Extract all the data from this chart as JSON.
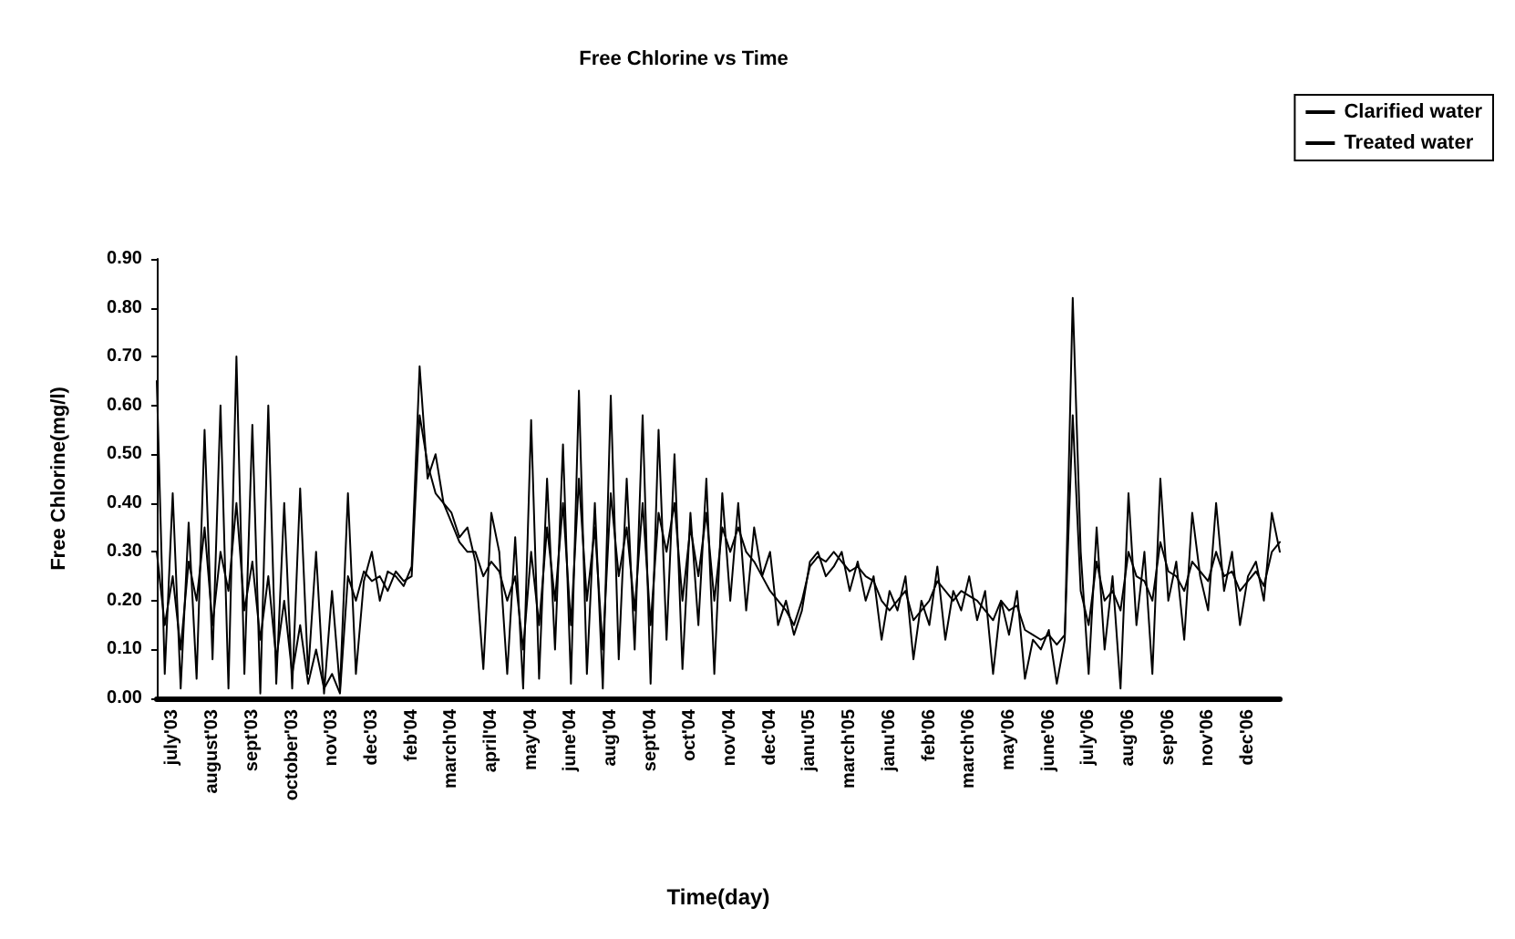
{
  "chart_data": {
    "type": "line",
    "title": "Free Chlorine vs Time",
    "xlabel": "Time(day)",
    "ylabel": "Free Chlorine(mg/l)",
    "categories": [
      null,
      null,
      "july'03",
      null,
      null,
      null,
      null,
      "august'03",
      null,
      null,
      null,
      null,
      "sept'03",
      null,
      null,
      null,
      null,
      "october'03",
      null,
      null,
      null,
      null,
      "nov'03",
      null,
      null,
      null,
      null,
      "dec'03",
      null,
      null,
      null,
      null,
      "feb'04",
      null,
      null,
      null,
      null,
      "march'04",
      null,
      null,
      null,
      null,
      "april'04",
      null,
      null,
      null,
      null,
      "may'04",
      null,
      null,
      null,
      null,
      "june'04",
      null,
      null,
      null,
      null,
      "aug'04",
      null,
      null,
      null,
      null,
      "sept'04",
      null,
      null,
      null,
      null,
      "oct'04",
      null,
      null,
      null,
      null,
      "nov'04",
      null,
      null,
      null,
      null,
      "dec'04",
      null,
      null,
      null,
      null,
      "janu'05",
      null,
      null,
      null,
      null,
      "march'05",
      null,
      null,
      null,
      null,
      "janu'06",
      null,
      null,
      null,
      null,
      "feb'06",
      null,
      null,
      null,
      null,
      "march'06",
      null,
      null,
      null,
      null,
      "may'06",
      null,
      null,
      null,
      null,
      "june'06",
      null,
      null,
      null,
      null,
      "july'06",
      null,
      null,
      null,
      null,
      "aug'06",
      null,
      null,
      null,
      null,
      "sep'06",
      null,
      null,
      null,
      null,
      "nov'06",
      null,
      null,
      null,
      null,
      "dec'06",
      null,
      null,
      null,
      null
    ],
    "series": [
      {
        "name": "Clarified water",
        "color": "#000000",
        "values": [
          0.65,
          0.05,
          0.42,
          0.02,
          0.36,
          0.04,
          0.55,
          0.08,
          0.6,
          0.02,
          0.7,
          0.05,
          0.56,
          0.01,
          0.6,
          0.03,
          0.4,
          0.02,
          0.43,
          0.05,
          0.3,
          0.01,
          0.22,
          0.02,
          0.42,
          0.05,
          0.24,
          0.3,
          0.2,
          0.26,
          0.25,
          0.23,
          0.27,
          0.68,
          0.45,
          0.5,
          0.4,
          0.38,
          0.33,
          0.35,
          0.28,
          0.06,
          0.38,
          0.3,
          0.05,
          0.33,
          0.02,
          0.57,
          0.04,
          0.45,
          0.1,
          0.52,
          0.03,
          0.63,
          0.05,
          0.4,
          0.02,
          0.62,
          0.08,
          0.45,
          0.1,
          0.58,
          0.03,
          0.55,
          0.12,
          0.5,
          0.06,
          0.38,
          0.15,
          0.45,
          0.05,
          0.42,
          0.2,
          0.4,
          0.18,
          0.35,
          0.25,
          0.3,
          0.15,
          0.2,
          0.13,
          0.18,
          0.28,
          0.3,
          0.25,
          0.27,
          0.3,
          0.22,
          0.28,
          0.2,
          0.25,
          0.12,
          0.22,
          0.18,
          0.25,
          0.08,
          0.2,
          0.15,
          0.27,
          0.12,
          0.22,
          0.18,
          0.25,
          0.16,
          0.22,
          0.05,
          0.2,
          0.13,
          0.22,
          0.04,
          0.12,
          0.1,
          0.14,
          0.03,
          0.12,
          0.82,
          0.3,
          0.05,
          0.35,
          0.1,
          0.25,
          0.02,
          0.42,
          0.15,
          0.3,
          0.05,
          0.45,
          0.2,
          0.28,
          0.12,
          0.38,
          0.25,
          0.18,
          0.4,
          0.22,
          0.3,
          0.15,
          0.25,
          0.28,
          0.2,
          0.38,
          0.3
        ]
      },
      {
        "name": "Treated water",
        "color": "#000000",
        "values": [
          0.3,
          0.15,
          0.25,
          0.1,
          0.28,
          0.2,
          0.35,
          0.15,
          0.3,
          0.22,
          0.4,
          0.18,
          0.28,
          0.12,
          0.25,
          0.08,
          0.2,
          0.05,
          0.15,
          0.03,
          0.1,
          0.02,
          0.05,
          0.01,
          0.25,
          0.2,
          0.26,
          0.24,
          0.25,
          0.22,
          0.26,
          0.24,
          0.25,
          0.58,
          0.48,
          0.42,
          0.4,
          0.36,
          0.32,
          0.3,
          0.3,
          0.25,
          0.28,
          0.26,
          0.2,
          0.25,
          0.1,
          0.3,
          0.15,
          0.35,
          0.2,
          0.4,
          0.15,
          0.45,
          0.2,
          0.35,
          0.1,
          0.42,
          0.25,
          0.35,
          0.18,
          0.4,
          0.15,
          0.38,
          0.3,
          0.4,
          0.2,
          0.35,
          0.25,
          0.38,
          0.2,
          0.35,
          0.3,
          0.35,
          0.3,
          0.28,
          0.25,
          0.22,
          0.2,
          0.18,
          0.15,
          0.2,
          0.27,
          0.29,
          0.28,
          0.3,
          0.28,
          0.26,
          0.27,
          0.25,
          0.24,
          0.2,
          0.18,
          0.2,
          0.22,
          0.16,
          0.18,
          0.2,
          0.24,
          0.22,
          0.2,
          0.22,
          0.21,
          0.2,
          0.18,
          0.16,
          0.2,
          0.18,
          0.19,
          0.14,
          0.13,
          0.12,
          0.13,
          0.11,
          0.13,
          0.58,
          0.22,
          0.15,
          0.28,
          0.2,
          0.22,
          0.18,
          0.3,
          0.25,
          0.24,
          0.2,
          0.32,
          0.26,
          0.25,
          0.22,
          0.28,
          0.26,
          0.24,
          0.3,
          0.25,
          0.26,
          0.22,
          0.24,
          0.26,
          0.23,
          0.3,
          0.32
        ]
      }
    ],
    "ylim": [
      0,
      0.9
    ],
    "yticks": [
      {
        "value": 0,
        "label": "0.00"
      },
      {
        "value": 0.1,
        "label": "0.10"
      },
      {
        "value": 0.2,
        "label": "0.20"
      },
      {
        "value": 0.3,
        "label": "0.30"
      },
      {
        "value": 0.4,
        "label": "0.40"
      },
      {
        "value": 0.5,
        "label": "0.50"
      },
      {
        "value": 0.6,
        "label": "0.60"
      },
      {
        "value": 0.7,
        "label": "0.70"
      },
      {
        "value": 0.8,
        "label": "0.80"
      },
      {
        "value": 0.9,
        "label": "0.90"
      }
    ],
    "grid": false,
    "legend": "top right",
    "marker": "none",
    "line_style": "solid"
  }
}
